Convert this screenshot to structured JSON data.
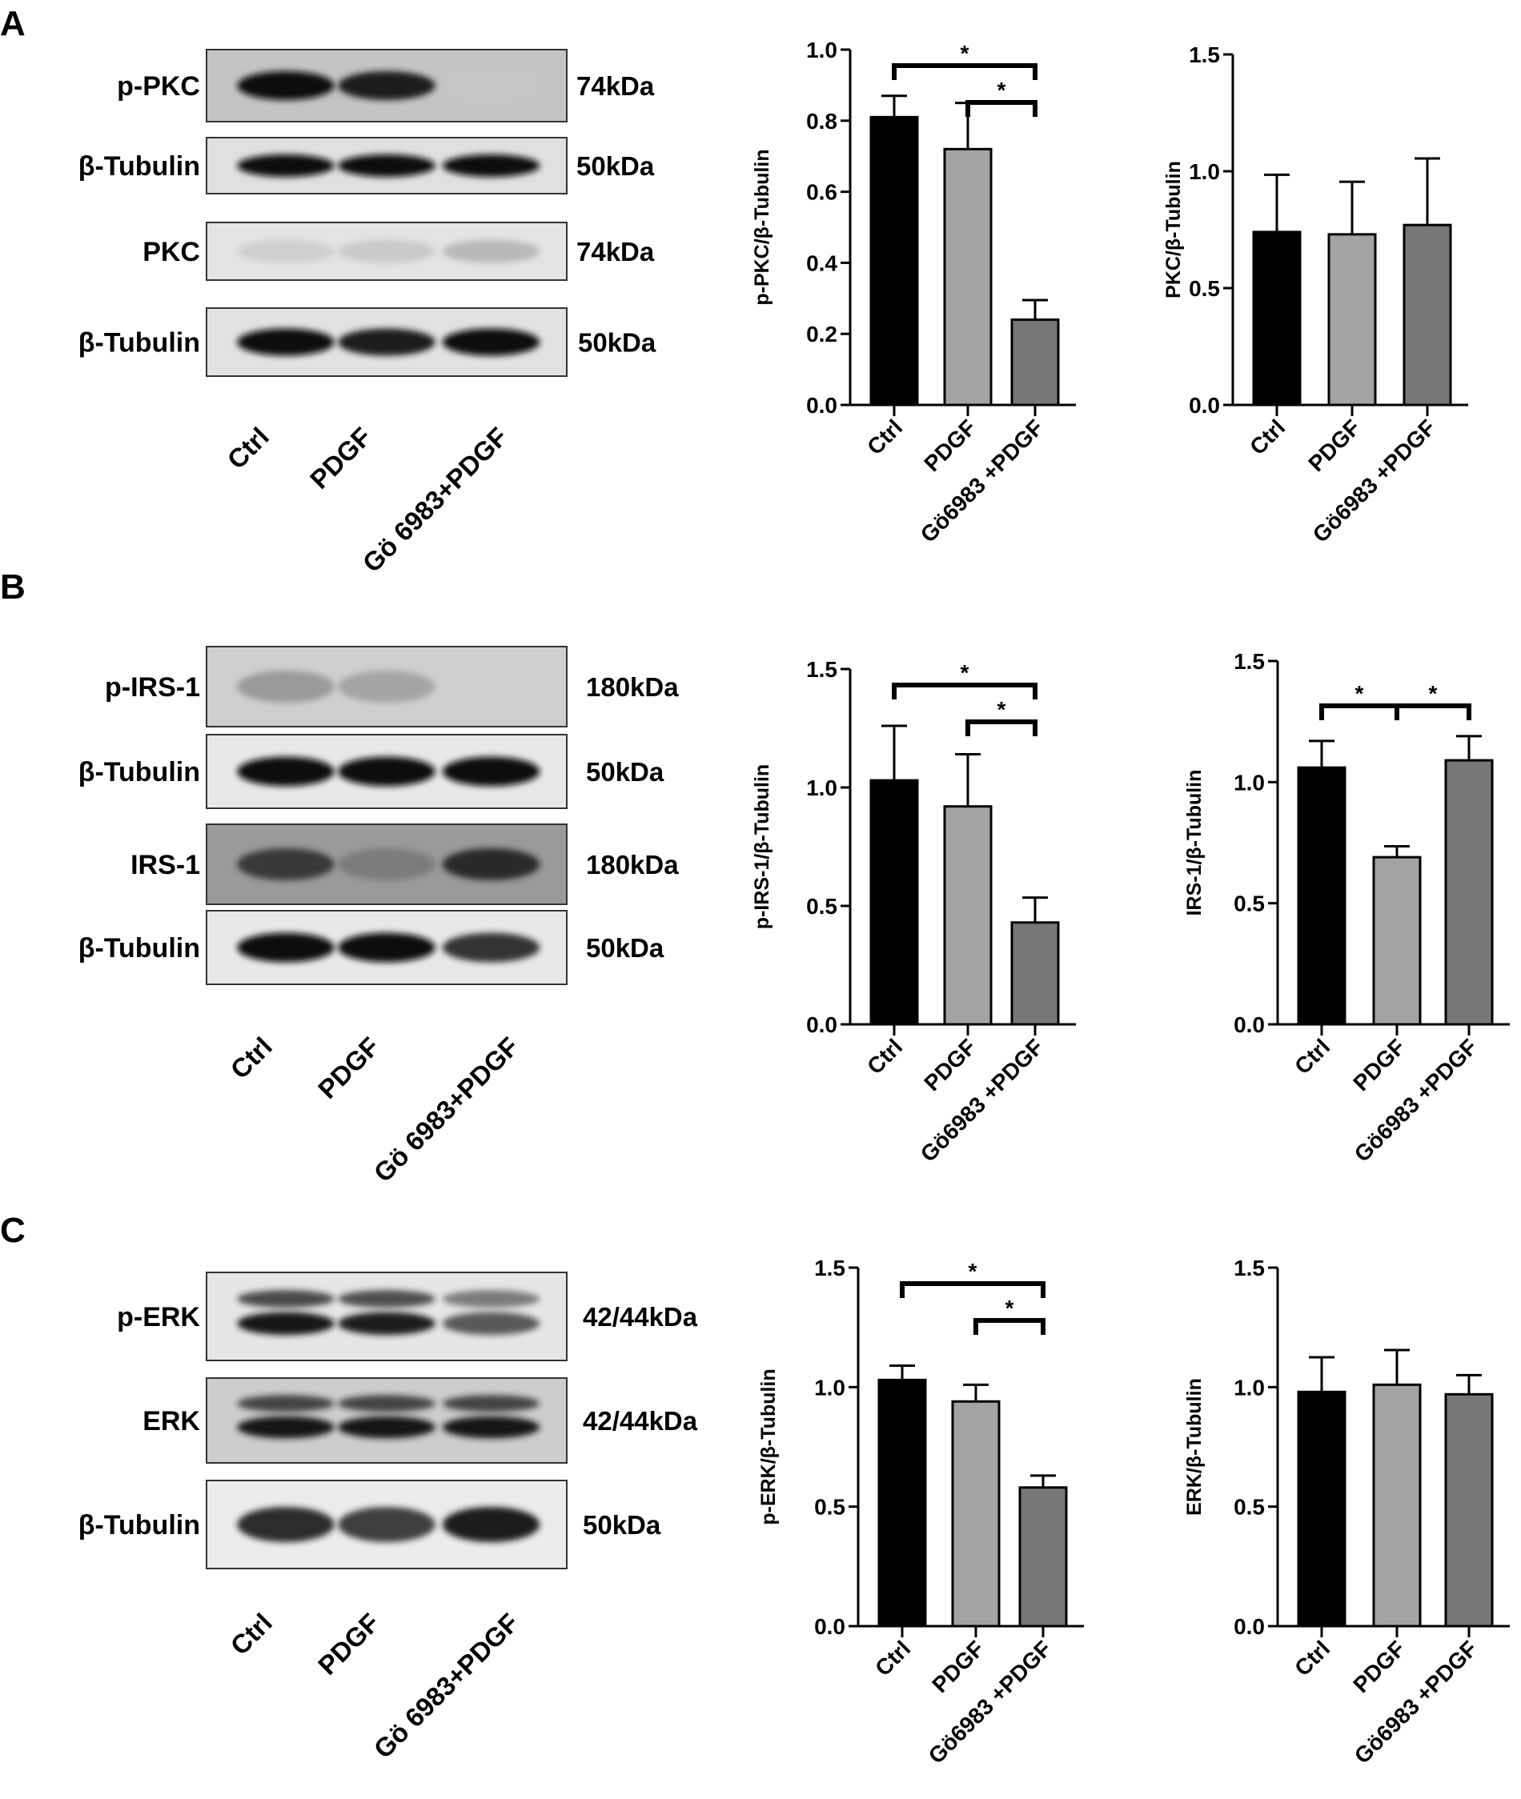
{
  "colors": {
    "ctrl": "#000000",
    "pdgf": "#a3a3a3",
    "go6983": "#777777",
    "text": "#000000"
  },
  "panels": [
    {
      "letter": "A",
      "blot": {
        "rows": [
          {
            "label": "p-PKC",
            "kda": "74kDa",
            "bands": [
              0.92,
              0.88,
              0.04
            ],
            "background": "#c4c4c4",
            "dual": false
          },
          {
            "label": "β-Tubulin",
            "kda": "50kDa",
            "bands": [
              0.95,
              0.92,
              0.92
            ],
            "background": "#e0e0e0",
            "dual": false
          },
          {
            "label": "PKC",
            "kda": "74kDa",
            "bands": [
              0.22,
              0.25,
              0.35
            ],
            "background": "#e4e4e4",
            "dual": false
          },
          {
            "label": "β-Tubulin",
            "kda": "50kDa",
            "bands": [
              0.95,
              0.86,
              0.96
            ],
            "background": "#e2e2e2",
            "dual": false
          }
        ],
        "lanes": [
          "Ctrl",
          "PDGF",
          "Gö 6983+PDGF"
        ]
      },
      "charts": [
        {
          "type": "bar",
          "ylabel": "p-PKC/β-Tubulin",
          "categories": [
            "Ctrl",
            "PDGF",
            "Gö6983 +PDGF"
          ],
          "values": [
            0.81,
            0.72,
            0.24
          ],
          "errors": [
            0.06,
            0.13,
            0.055
          ],
          "ylim": [
            0,
            1.0
          ],
          "yticks": [
            "0.0",
            "0.2",
            "0.4",
            "0.6",
            "0.8",
            "1.0"
          ],
          "ytick_values": [
            0,
            0.2,
            0.4,
            0.6,
            0.8,
            1.0
          ],
          "significance": [
            {
              "from": 0,
              "to": 2,
              "label": "*"
            },
            {
              "from": 1,
              "to": 2,
              "label": "*"
            }
          ]
        },
        {
          "type": "bar",
          "ylabel": "PKC/β-Tubulin",
          "categories": [
            "Ctrl",
            "PDGF",
            "Gö6983 +PDGF"
          ],
          "values": [
            0.74,
            0.73,
            0.77
          ],
          "errors": [
            0.245,
            0.225,
            0.285
          ],
          "ylim": [
            0,
            1.5
          ],
          "yticks": [
            "0.0",
            "0.5",
            "1.0",
            "1.5"
          ],
          "ytick_values": [
            0,
            0.5,
            1.0,
            1.5
          ],
          "significance": []
        }
      ]
    },
    {
      "letter": "B",
      "blot": {
        "rows": [
          {
            "label": "p-IRS-1",
            "kda": "180kDa",
            "bands": [
              0.45,
              0.4,
              0.05
            ],
            "background": "#cfcfcf",
            "dual": false
          },
          {
            "label": "β-Tubulin",
            "kda": "50kDa",
            "bands": [
              0.93,
              0.92,
              0.92
            ],
            "background": "#e8e8e8",
            "dual": false
          },
          {
            "label": "IRS-1",
            "kda": "180kDa",
            "bands": [
              0.78,
              0.5,
              0.82
            ],
            "background": "#9a9a9a",
            "dual": false
          },
          {
            "label": "β-Tubulin",
            "kda": "50kDa",
            "bands": [
              0.97,
              0.95,
              0.8
            ],
            "background": "#e8e8e8",
            "dual": false
          }
        ],
        "lanes": [
          "Ctrl",
          "PDGF",
          "Gö 6983+PDGF"
        ]
      },
      "charts": [
        {
          "type": "bar",
          "ylabel": "p-IRS-1/β-Tubulin",
          "categories": [
            "Ctrl",
            "PDGF",
            "Gö6983 +PDGF"
          ],
          "values": [
            1.03,
            0.92,
            0.43
          ],
          "errors": [
            0.23,
            0.22,
            0.105
          ],
          "ylim": [
            0,
            1.5
          ],
          "yticks": [
            "0.0",
            "0.5",
            "1.0",
            "1.5"
          ],
          "ytick_values": [
            0,
            0.5,
            1.0,
            1.5
          ],
          "significance": [
            {
              "from": 0,
              "to": 2,
              "label": "*"
            },
            {
              "from": 1,
              "to": 2,
              "label": "*"
            }
          ]
        },
        {
          "type": "bar",
          "ylabel": "IRS-1/β-Tubulin",
          "categories": [
            "Ctrl",
            "PDGF",
            "Gö6983 +PDGF"
          ],
          "values": [
            1.06,
            0.69,
            1.09
          ],
          "errors": [
            0.11,
            0.045,
            0.1
          ],
          "ylim": [
            0,
            1.5
          ],
          "yticks": [
            "0.0",
            "0.5",
            "1.0",
            "1.5"
          ],
          "ytick_values": [
            0,
            0.5,
            1.0,
            1.5
          ],
          "significance": [
            {
              "from": 0,
              "to": 1,
              "label": "*"
            },
            {
              "from": 1,
              "to": 2,
              "label": "*"
            }
          ]
        }
      ]
    },
    {
      "letter": "C",
      "blot": {
        "rows": [
          {
            "label": "p-ERK",
            "kda": "42/44kDa",
            "bands": [
              0.9,
              0.88,
              0.7
            ],
            "background": "#e6e6e6",
            "dual": true
          },
          {
            "label": "ERK",
            "kda": "42/44kDa",
            "bands": [
              0.9,
              0.9,
              0.9
            ],
            "background": "#cdcdcd",
            "dual": true
          },
          {
            "label": "β-Tubulin",
            "kda": "50kDa",
            "bands": [
              0.82,
              0.78,
              0.86
            ],
            "background": "#ececec",
            "dual": false
          }
        ],
        "lanes": [
          "Ctrl",
          "PDGF",
          "Gö 6983+PDGF"
        ]
      },
      "charts": [
        {
          "type": "bar",
          "ylabel": "p-ERK/β-Tubulin",
          "categories": [
            "Ctrl",
            "PDGF",
            "Gö6983 +PDGF"
          ],
          "values": [
            1.03,
            0.94,
            0.58
          ],
          "errors": [
            0.06,
            0.07,
            0.05
          ],
          "ylim": [
            0,
            1.5
          ],
          "yticks": [
            "0.0",
            "0.5",
            "1.0",
            "1.5"
          ],
          "ytick_values": [
            0,
            0.5,
            1.0,
            1.5
          ],
          "significance": [
            {
              "from": 0,
              "to": 2,
              "label": "*"
            },
            {
              "from": 1,
              "to": 2,
              "label": "*"
            }
          ]
        },
        {
          "type": "bar",
          "ylabel": "ERK/β-Tubulin",
          "categories": [
            "Ctrl",
            "PDGF",
            "Gö6983 +PDGF"
          ],
          "values": [
            0.98,
            1.01,
            0.97
          ],
          "errors": [
            0.145,
            0.145,
            0.08
          ],
          "ylim": [
            0,
            1.5
          ],
          "yticks": [
            "0.0",
            "0.5",
            "1.0",
            "1.5"
          ],
          "ytick_values": [
            0,
            0.5,
            1.0,
            1.5
          ],
          "significance": []
        }
      ]
    }
  ]
}
